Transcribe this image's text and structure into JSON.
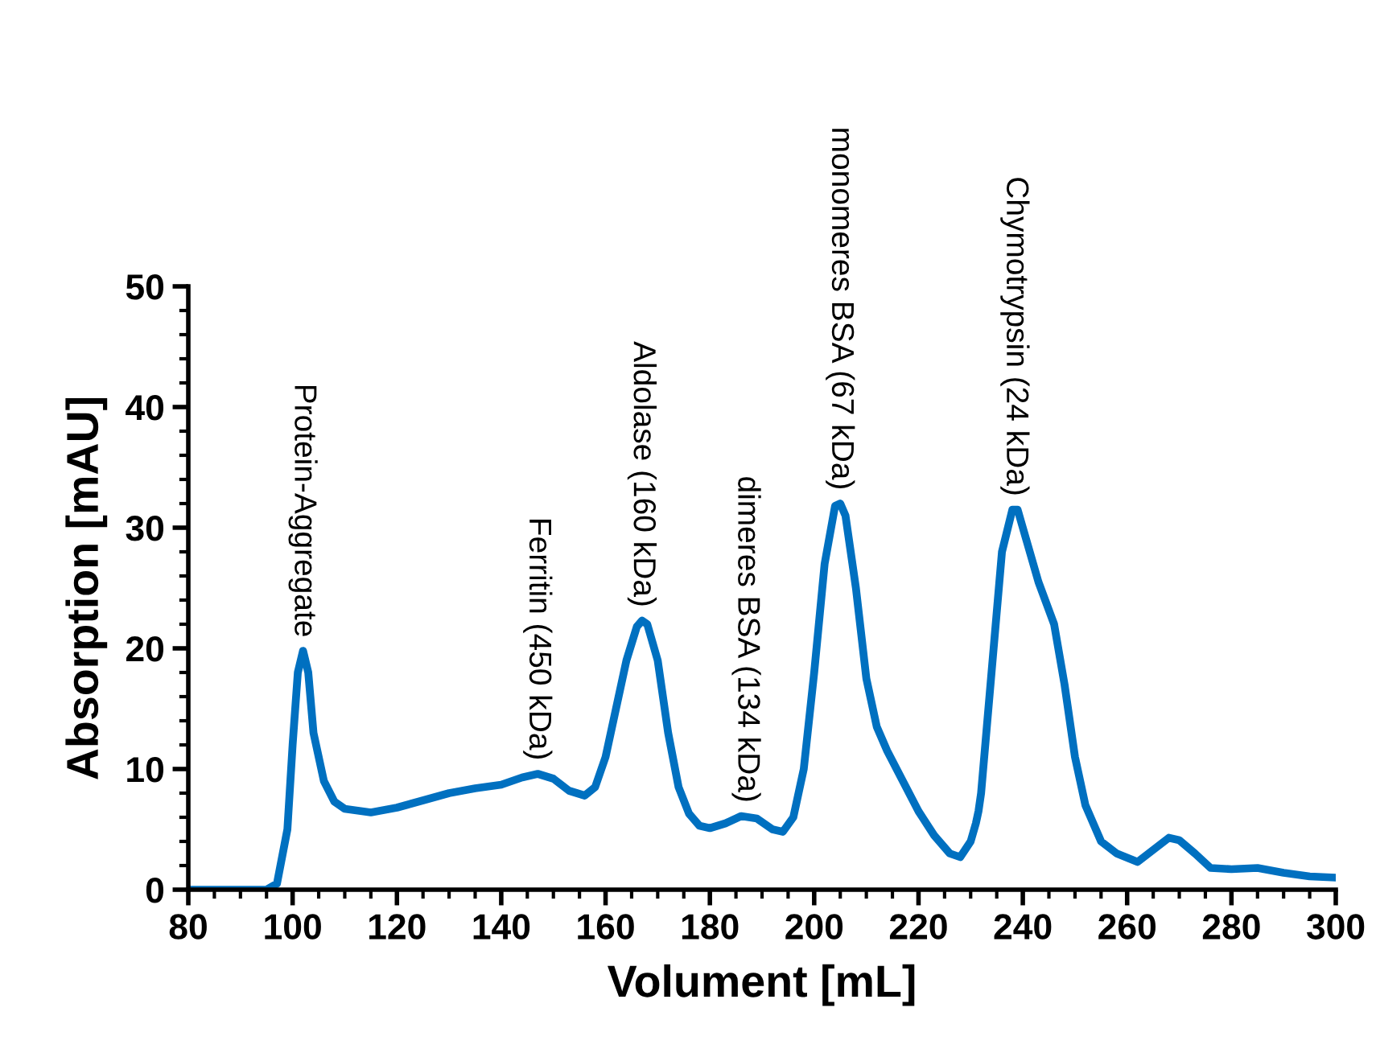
{
  "chart_data": {
    "type": "line",
    "xlabel": "Volument [mL]",
    "ylabel": "Absorption [mAU]",
    "xlim": [
      80,
      300
    ],
    "xticks": [
      80,
      100,
      120,
      140,
      160,
      180,
      200,
      220,
      240,
      260,
      280,
      300
    ],
    "ylim": [
      0,
      50
    ],
    "yticks": [
      0,
      10,
      20,
      30,
      40,
      50
    ],
    "grid": false,
    "marker": "none",
    "line_style": "solid",
    "series": [
      {
        "color": "#0070c0",
        "x": [
          80,
          95,
          97,
          99,
          100,
          101,
          102,
          103,
          104,
          106,
          108,
          110,
          115,
          120,
          125,
          130,
          135,
          140,
          144,
          147,
          150,
          153,
          156,
          158,
          160,
          162,
          164,
          166,
          167,
          168,
          170,
          172,
          174,
          176,
          178,
          180,
          183,
          186,
          189,
          192,
          194,
          196,
          198,
          200,
          202,
          204,
          205,
          206,
          208,
          210,
          212,
          214,
          217,
          220,
          223,
          226,
          228,
          230,
          231,
          231.5,
          232,
          234,
          236,
          238,
          239,
          241,
          243,
          246,
          248,
          250,
          252,
          255,
          258,
          262,
          265,
          268,
          270,
          273,
          276,
          280,
          285,
          290,
          295,
          300
        ],
        "values": [
          0,
          0,
          0.5,
          5,
          12,
          18,
          19.8,
          18,
          13,
          9,
          7.3,
          6.7,
          6.4,
          6.8,
          7.4,
          8,
          8.4,
          8.7,
          9.3,
          9.6,
          9.2,
          8.2,
          7.8,
          8.5,
          11,
          15,
          19,
          21.8,
          22.3,
          22,
          19,
          13,
          8.5,
          6.3,
          5.3,
          5.1,
          5.5,
          6.1,
          5.9,
          5,
          4.8,
          6,
          10,
          18,
          27,
          31.8,
          32,
          31,
          25,
          17.5,
          13.5,
          11.5,
          9,
          6.5,
          4.5,
          3,
          2.7,
          4,
          5.5,
          6.5,
          8,
          18,
          28,
          31.5,
          31.5,
          28.5,
          25.5,
          22,
          17,
          11,
          7,
          4,
          3,
          2.3,
          3.3,
          4.3,
          4.1,
          3,
          1.8,
          1.7,
          1.8,
          1.4,
          1.1,
          1.0
        ]
      }
    ],
    "annotations": [
      {
        "text": "Protein-Aggregate",
        "x": 102,
        "y": 19.8
      },
      {
        "text": "Ferritin (450 kDa)",
        "x": 147,
        "y": 9.6
      },
      {
        "text": "Aldolase (160 kDa)",
        "x": 167,
        "y": 22.3
      },
      {
        "text": "dimeres BSA (134 kDa)",
        "x": 187,
        "y": 6.1
      },
      {
        "text": "monomeres BSA (67 kDa)",
        "x": 205,
        "y": 32
      },
      {
        "text": "Chymotrypsin (24 kDa)",
        "x": 238.5,
        "y": 31.5
      }
    ]
  }
}
